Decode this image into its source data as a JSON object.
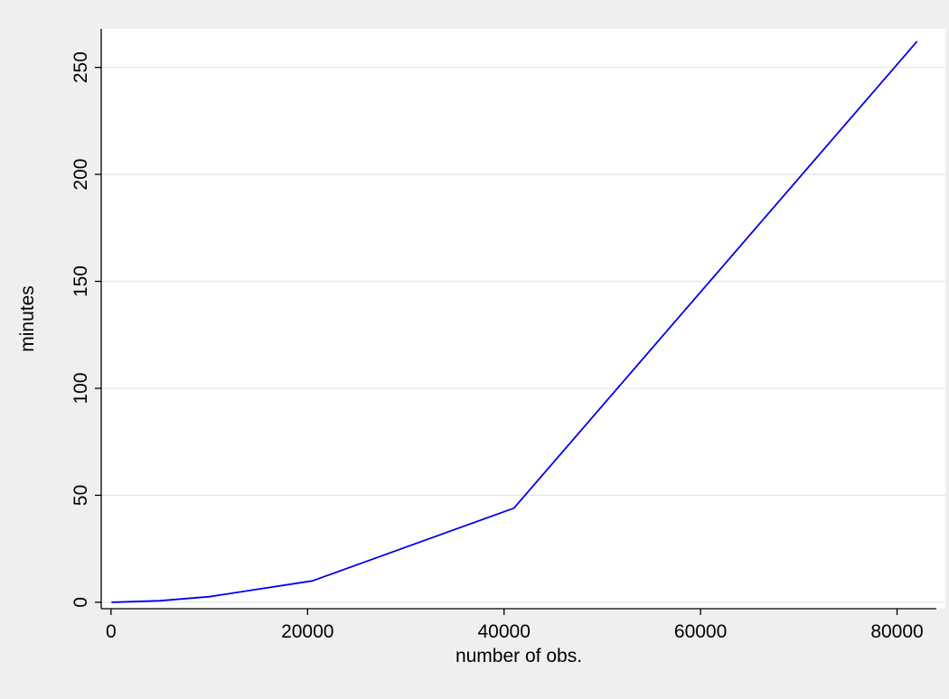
{
  "chart_data": {
    "type": "line",
    "title": "",
    "xlabel": "number of obs.",
    "ylabel": "minutes",
    "xlim": [
      -1000,
      84000
    ],
    "ylim": [
      -3,
      268
    ],
    "x_ticks": [
      0,
      20000,
      40000,
      60000,
      80000
    ],
    "y_ticks": [
      0,
      50,
      100,
      150,
      200,
      250
    ],
    "x_tick_labels": [
      "0",
      "20000",
      "40000",
      "60000",
      "80000"
    ],
    "y_tick_labels": [
      "0",
      "50",
      "100",
      "150",
      "200",
      "250"
    ],
    "grid": {
      "x": false,
      "y": true
    },
    "legend": "none",
    "colors": {
      "page_background": "#efefef",
      "plot_background": "#ffffff",
      "gridline": "#e6e6e6",
      "axis": "#000000",
      "line": "#0000ee"
    },
    "series": [
      {
        "x": [
          100,
          5000,
          10000,
          20500,
          41000,
          82000
        ],
        "y": [
          0,
          0.7,
          2.6,
          10,
          44,
          262
        ]
      }
    ]
  }
}
